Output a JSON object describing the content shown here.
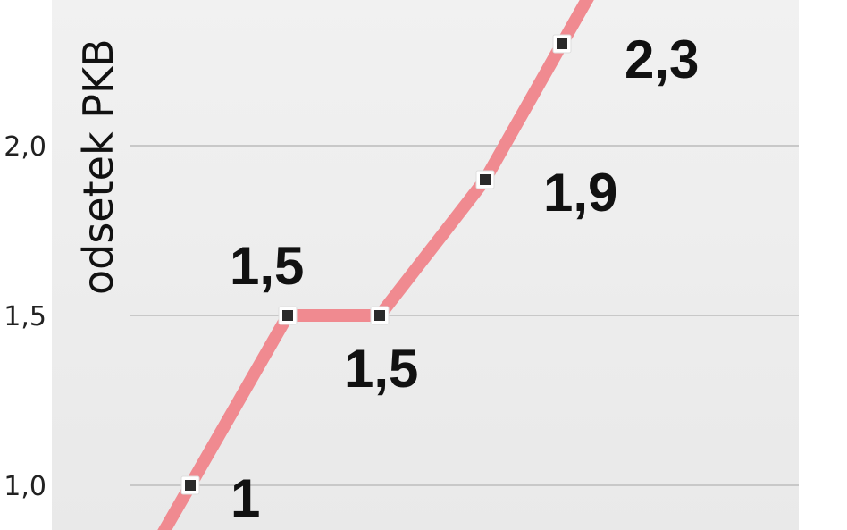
{
  "chart_data": {
    "type": "line",
    "title": "",
    "xlabel": "",
    "ylabel": "odsetek PKB",
    "ylim": [
      0.87,
      2.43
    ],
    "yticks": [
      {
        "value": 1.0,
        "label": "1,0"
      },
      {
        "value": 1.5,
        "label": "1,5"
      },
      {
        "value": 2.0,
        "label": "2,0"
      }
    ],
    "grid": true,
    "series": [
      {
        "values": [
          1.0,
          1.5,
          1.5,
          1.9,
          2.3
        ],
        "labels": [
          "1",
          "1,5",
          "1,5",
          "1,9",
          "2,3"
        ],
        "color": "#f08a90"
      }
    ],
    "colors": {
      "line": "#f08a90",
      "plot_bg": "#efefef",
      "grid": "#c8c8c8",
      "marker": "#2a2a2a"
    }
  }
}
